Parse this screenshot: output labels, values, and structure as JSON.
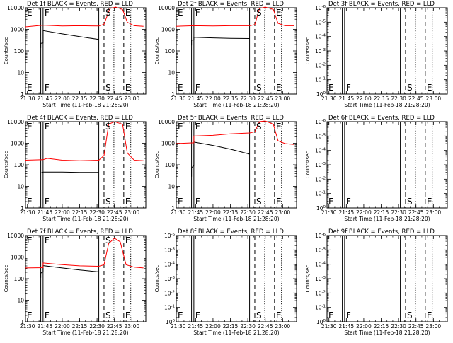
{
  "chart_data": [
    {
      "type": "line",
      "title": "Det 1f BLACK = Events, RED = LLD",
      "xlabel": "Start Time (11-Feb-18 21:28:20)",
      "ylabel": "Counts/sec",
      "yscale": "log",
      "ylim": [
        1,
        12000
      ],
      "xlim": [
        "21:28:20",
        "23:12:00"
      ],
      "x_tick_labels": [
        "21:30",
        "21:45",
        "22:00",
        "22:15",
        "22:30",
        "22:45",
        "23:00"
      ],
      "y_tick_labels": [
        "1",
        "10",
        "100",
        "1000",
        "10000"
      ],
      "markers": [
        {
          "time": "21:41:30",
          "style": "solid",
          "label": "E"
        },
        {
          "time": "21:43:30",
          "style": "solid",
          "label": "F"
        },
        {
          "time": "22:31:30",
          "style": "solid",
          "label": ""
        },
        {
          "time": "22:36:00",
          "style": "dashed",
          "label": "S"
        },
        {
          "time": "22:44:30",
          "style": "dotted",
          "label": ""
        },
        {
          "time": "22:53:00",
          "style": "dashed",
          "label": "E"
        },
        {
          "time": "22:59:00",
          "style": "dotted",
          "label": ""
        }
      ],
      "series": [
        {
          "name": "BLACK = Events",
          "color": "#000000",
          "x": [
            "21:41:30",
            "21:41:31",
            "21:43:30",
            "21:43:31",
            "22:00:00",
            "22:15:00",
            "22:31:30"
          ],
          "y": [
            150,
            250,
            260,
            1000,
            700,
            520,
            380
          ]
        },
        {
          "name": "RED = LLD",
          "color": "#ff0000",
          "x": [
            "21:28:20",
            "21:43:30",
            "22:00:00",
            "22:15:00",
            "22:31:30",
            "22:36:00",
            "22:41:00",
            "22:46:00",
            "22:52:00",
            "22:56:00",
            "23:02:00",
            "23:10:00"
          ],
          "y": [
            1500,
            1800,
            1650,
            1700,
            1650,
            2000,
            11000,
            13000,
            10000,
            2500,
            1700,
            1600
          ]
        }
      ]
    },
    {
      "type": "line",
      "title": "Det 2f BLACK = Events, RED = LLD",
      "xlabel": "Start Time (11-Feb-18 21:28:20)",
      "ylabel": "Counts/sec",
      "yscale": "log",
      "ylim": [
        1,
        12000
      ],
      "xlim": [
        "21:28:20",
        "23:12:00"
      ],
      "x_tick_labels": [
        "21:30",
        "21:45",
        "22:00",
        "22:15",
        "22:30",
        "22:45",
        "23:00"
      ],
      "y_tick_labels": [
        "1",
        "10",
        "100",
        "1000",
        "10000"
      ],
      "markers": [
        {
          "time": "21:41:30",
          "style": "solid",
          "label": "E"
        },
        {
          "time": "21:43:30",
          "style": "solid",
          "label": "F"
        },
        {
          "time": "22:31:30",
          "style": "solid",
          "label": ""
        },
        {
          "time": "22:36:00",
          "style": "dashed",
          "label": "S"
        },
        {
          "time": "22:44:30",
          "style": "dotted",
          "label": ""
        },
        {
          "time": "22:53:00",
          "style": "dashed",
          "label": "E"
        },
        {
          "time": "22:59:00",
          "style": "dotted",
          "label": ""
        }
      ],
      "series": [
        {
          "name": "BLACK = Events",
          "color": "#000000",
          "x": [
            "21:41:30",
            "21:41:31",
            "21:43:30",
            "21:43:31",
            "22:00:00",
            "22:15:00",
            "22:31:30"
          ],
          "y": [
            200,
            350,
            360,
            480,
            450,
            430,
            420
          ]
        },
        {
          "name": "RED = LLD",
          "color": "#ff0000",
          "x": [
            "21:28:20",
            "21:43:30",
            "22:00:00",
            "22:15:00",
            "22:31:30",
            "22:36:00",
            "22:40:00",
            "22:45:00",
            "22:52:00",
            "22:56:00",
            "23:02:00",
            "23:10:00"
          ],
          "y": [
            1600,
            1700,
            1650,
            1700,
            1700,
            1900,
            11000,
            13000,
            10000,
            2200,
            1700,
            1700
          ]
        }
      ]
    },
    {
      "type": "line",
      "title": "Det 3f BLACK = Events, RED = LLD",
      "xlabel": "Start Time (11-Feb-18 21:28:20)",
      "ylabel": "Counts/sec",
      "yscale": "log",
      "ylim": [
        1,
        1e-06
      ],
      "xlim": [
        "21:28:20",
        "23:12:00"
      ],
      "x_tick_labels": [
        "21:30",
        "21:45",
        "22:00",
        "22:15",
        "22:30",
        "22:45",
        "23:00"
      ],
      "y_tick_labels": [
        "10^0",
        "10^-1",
        "10^-2",
        "10^-3",
        "10^-4",
        "10^-5",
        "10^-6"
      ],
      "markers": [
        {
          "time": "21:41:30",
          "style": "solid",
          "label": "E"
        },
        {
          "time": "21:43:30",
          "style": "solid",
          "label": "F"
        },
        {
          "time": "22:31:30",
          "style": "solid",
          "label": ""
        },
        {
          "time": "22:36:00",
          "style": "dashed",
          "label": "S"
        },
        {
          "time": "22:44:30",
          "style": "dotted",
          "label": ""
        },
        {
          "time": "22:53:00",
          "style": "dashed",
          "label": "E"
        },
        {
          "time": "22:59:00",
          "style": "dotted",
          "label": ""
        }
      ],
      "series": []
    },
    {
      "type": "line",
      "title": "Det 4f BLACK = Events, RED = LLD",
      "xlabel": "Start Time (11-Feb-18 21:28:20)",
      "ylabel": "Counts/sec",
      "yscale": "log",
      "ylim": [
        1,
        12000
      ],
      "xlim": [
        "21:28:20",
        "23:12:00"
      ],
      "x_tick_labels": [
        "21:30",
        "21:45",
        "22:00",
        "22:15",
        "22:30",
        "22:45",
        "23:00"
      ],
      "y_tick_labels": [
        "1",
        "10",
        "100",
        "1000",
        "10000"
      ],
      "markers": [
        {
          "time": "21:41:30",
          "style": "solid",
          "label": "E"
        },
        {
          "time": "21:43:30",
          "style": "solid",
          "label": "F"
        },
        {
          "time": "22:31:30",
          "style": "solid",
          "label": ""
        },
        {
          "time": "22:36:00",
          "style": "dashed",
          "label": "S"
        },
        {
          "time": "22:44:30",
          "style": "dotted",
          "label": ""
        },
        {
          "time": "22:53:00",
          "style": "dashed",
          "label": "E"
        },
        {
          "time": "22:59:00",
          "style": "dotted",
          "label": ""
        }
      ],
      "series": [
        {
          "name": "BLACK = Events",
          "color": "#000000",
          "x": [
            "21:41:30",
            "21:43:30",
            "22:00:00",
            "22:15:00",
            "22:31:30"
          ],
          "y": [
            45,
            50,
            50,
            48,
            48
          ]
        },
        {
          "name": "RED = LLD",
          "color": "#ff0000",
          "x": [
            "21:28:20",
            "21:43:30",
            "21:47:00",
            "22:00:00",
            "22:15:00",
            "22:31:30",
            "22:36:00",
            "22:40:00",
            "22:45:00",
            "22:52:00",
            "22:56:00",
            "23:02:00",
            "23:10:00"
          ],
          "y": [
            180,
            190,
            220,
            180,
            170,
            180,
            300,
            9000,
            12000,
            9000,
            400,
            180,
            170
          ]
        }
      ]
    },
    {
      "type": "line",
      "title": "Det 5f BLACK = Events, RED = LLD",
      "xlabel": "Start Time (11-Feb-18 21:28:20)",
      "ylabel": "Counts/sec",
      "yscale": "log",
      "ylim": [
        1,
        12000
      ],
      "xlim": [
        "21:28:20",
        "23:12:00"
      ],
      "x_tick_labels": [
        "21:30",
        "21:45",
        "22:00",
        "22:15",
        "22:30",
        "22:45",
        "23:00"
      ],
      "y_tick_labels": [
        "1",
        "10",
        "100",
        "1000",
        "10000"
      ],
      "markers": [
        {
          "time": "21:41:30",
          "style": "solid",
          "label": "E"
        },
        {
          "time": "21:43:30",
          "style": "solid",
          "label": "F"
        },
        {
          "time": "22:31:30",
          "style": "solid",
          "label": ""
        },
        {
          "time": "22:36:00",
          "style": "dashed",
          "label": "S"
        },
        {
          "time": "22:44:30",
          "style": "dotted",
          "label": ""
        },
        {
          "time": "22:53:00",
          "style": "dashed",
          "label": "E"
        },
        {
          "time": "22:59:00",
          "style": "dotted",
          "label": ""
        }
      ],
      "series": [
        {
          "name": "BLACK = Events",
          "color": "#000000",
          "x": [
            "21:41:30",
            "21:41:31",
            "21:43:30",
            "21:43:31",
            "22:00:00",
            "22:15:00",
            "22:31:30"
          ],
          "y": [
            30,
            80,
            100,
            1300,
            900,
            600,
            350
          ]
        },
        {
          "name": "RED = LLD",
          "color": "#ff0000",
          "x": [
            "21:28:20",
            "21:43:30",
            "21:43:31",
            "22:00:00",
            "22:15:00",
            "22:31:30",
            "22:36:00",
            "22:40:00",
            "22:45:00",
            "22:52:00",
            "22:56:00",
            "23:02:00",
            "23:10:00"
          ],
          "y": [
            1100,
            1200,
            2500,
            2700,
            3200,
            3500,
            4000,
            12000,
            13000,
            9000,
            1500,
            1100,
            1000
          ]
        }
      ]
    },
    {
      "type": "line",
      "title": "Det 6f BLACK = Events, RED = LLD",
      "xlabel": "Start Time (11-Feb-18 21:28:20)",
      "ylabel": "Counts/sec",
      "yscale": "log",
      "ylim": [
        1,
        1e-06
      ],
      "xlim": [
        "21:28:20",
        "23:12:00"
      ],
      "x_tick_labels": [
        "21:30",
        "21:45",
        "22:00",
        "22:15",
        "22:30",
        "22:45",
        "23:00"
      ],
      "y_tick_labels": [
        "10^0",
        "10^-1",
        "10^-2",
        "10^-3",
        "10^-4",
        "10^-5",
        "10^-6"
      ],
      "markers": [
        {
          "time": "21:41:30",
          "style": "solid",
          "label": "E"
        },
        {
          "time": "21:43:30",
          "style": "solid",
          "label": "F"
        },
        {
          "time": "22:31:30",
          "style": "solid",
          "label": ""
        },
        {
          "time": "22:36:00",
          "style": "dashed",
          "label": "S"
        },
        {
          "time": "22:44:30",
          "style": "dotted",
          "label": ""
        },
        {
          "time": "22:53:00",
          "style": "dashed",
          "label": "E"
        },
        {
          "time": "22:59:00",
          "style": "dotted",
          "label": ""
        }
      ],
      "series": []
    },
    {
      "type": "line",
      "title": "Det 7f BLACK = Events, RED = LLD",
      "xlabel": "Start Time (11-Feb-18 21:28:20)",
      "ylabel": "Counts/sec",
      "yscale": "log",
      "ylim": [
        1,
        12000
      ],
      "xlim": [
        "21:28:20",
        "23:12:00"
      ],
      "x_tick_labels": [
        "21:30",
        "21:45",
        "22:00",
        "22:15",
        "22:30",
        "22:45",
        "23:00"
      ],
      "y_tick_labels": [
        "1",
        "10",
        "100",
        "1000",
        "10000"
      ],
      "markers": [
        {
          "time": "21:41:30",
          "style": "solid",
          "label": "E"
        },
        {
          "time": "21:43:30",
          "style": "solid",
          "label": "F"
        },
        {
          "time": "22:31:30",
          "style": "solid",
          "label": ""
        },
        {
          "time": "22:36:00",
          "style": "dashed",
          "label": "S"
        },
        {
          "time": "22:44:30",
          "style": "dotted",
          "label": ""
        },
        {
          "time": "22:53:00",
          "style": "dashed",
          "label": "E"
        },
        {
          "time": "22:59:00",
          "style": "dotted",
          "label": ""
        }
      ],
      "series": [
        {
          "name": "BLACK = Events",
          "color": "#000000",
          "x": [
            "21:41:30",
            "21:41:31",
            "21:43:30",
            "21:43:31",
            "22:00:00",
            "22:15:00",
            "22:31:30"
          ],
          "y": [
            120,
            200,
            230,
            450,
            350,
            280,
            230
          ]
        },
        {
          "name": "RED = LLD",
          "color": "#ff0000",
          "x": [
            "21:28:20",
            "21:43:30",
            "21:43:31",
            "22:00:00",
            "22:15:00",
            "22:31:30",
            "22:36:00",
            "22:40:00",
            "22:45:00",
            "22:50:00",
            "22:55:00",
            "23:02:00",
            "23:10:00"
          ],
          "y": [
            350,
            360,
            600,
            500,
            440,
            420,
            500,
            5000,
            9000,
            6000,
            500,
            380,
            350
          ]
        }
      ]
    },
    {
      "type": "line",
      "title": "Det 8f BLACK = Events, RED = LLD",
      "xlabel": "Start Time (11-Feb-18 21:28:20)",
      "ylabel": "Counts/sec",
      "yscale": "log",
      "ylim": [
        1,
        1e-06
      ],
      "xlim": [
        "21:28:20",
        "23:12:00"
      ],
      "x_tick_labels": [
        "21:30",
        "21:45",
        "22:00",
        "22:15",
        "22:30",
        "22:45",
        "23:00"
      ],
      "y_tick_labels": [
        "10^0",
        "10^-1",
        "10^-2",
        "10^-3",
        "10^-4",
        "10^-5",
        "10^-6"
      ],
      "markers": [
        {
          "time": "21:41:30",
          "style": "solid",
          "label": "E"
        },
        {
          "time": "21:43:30",
          "style": "solid",
          "label": "F"
        },
        {
          "time": "22:31:30",
          "style": "solid",
          "label": ""
        },
        {
          "time": "22:36:00",
          "style": "dashed",
          "label": "S"
        },
        {
          "time": "22:44:30",
          "style": "dotted",
          "label": ""
        },
        {
          "time": "22:53:00",
          "style": "dashed",
          "label": "E"
        },
        {
          "time": "22:59:00",
          "style": "dotted",
          "label": ""
        }
      ],
      "series": []
    },
    {
      "type": "line",
      "title": "Det 9f BLACK = Events, RED = LLD",
      "xlabel": "Start Time (11-Feb-18 21:28:20)",
      "ylabel": "Counts/sec",
      "yscale": "log",
      "ylim": [
        1,
        1e-06
      ],
      "xlim": [
        "21:28:20",
        "23:12:00"
      ],
      "x_tick_labels": [
        "21:30",
        "21:45",
        "22:00",
        "22:15",
        "22:30",
        "22:45",
        "23:00"
      ],
      "y_tick_labels": [
        "10^0",
        "10^-1",
        "10^-2",
        "10^-3",
        "10^-4",
        "10^-5",
        "10^-6"
      ],
      "markers": [
        {
          "time": "21:41:30",
          "style": "solid",
          "label": "E"
        },
        {
          "time": "21:43:30",
          "style": "solid",
          "label": "F"
        },
        {
          "time": "22:31:30",
          "style": "solid",
          "label": ""
        },
        {
          "time": "22:36:00",
          "style": "dashed",
          "label": "S"
        },
        {
          "time": "22:44:30",
          "style": "dotted",
          "label": ""
        },
        {
          "time": "22:53:00",
          "style": "dashed",
          "label": "E"
        },
        {
          "time": "22:59:00",
          "style": "dotted",
          "label": ""
        }
      ],
      "series": []
    }
  ]
}
